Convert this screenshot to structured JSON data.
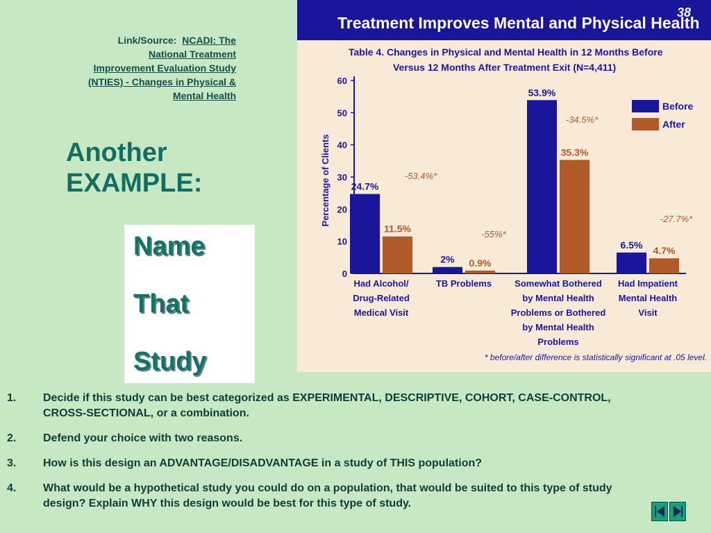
{
  "source": {
    "prefix": "Link/Source:",
    "link_lines": [
      "NCADI: The",
      "National Treatment",
      "Improvement Evaluation Study",
      "(NTIES) - Changes in Physical &",
      "Mental Health"
    ]
  },
  "heading": {
    "line1": "Another",
    "line2": "EXAMPLE:"
  },
  "name_that_study": [
    "Name",
    "That",
    "Study"
  ],
  "slide_number": "38",
  "chart_data": {
    "type": "bar",
    "title": "Treatment Improves Mental and Physical Health",
    "subtitle_line1": "Table 4. Changes in Physical and Mental Health in 12 Months Before",
    "subtitle_line2": "Versus 12 Months After Treatment Exit (N=4,411)",
    "ylabel": "Percentage of Clients",
    "ylim": [
      0,
      60
    ],
    "yticks": [
      "0",
      "10",
      "20",
      "30",
      "40",
      "50",
      "60"
    ],
    "categories": [
      [
        "Had Alcohol/",
        "Drug-Related",
        "Medical Visit"
      ],
      [
        "TB Problems"
      ],
      [
        "Somewhat Bothered",
        "by Mental Health",
        "Problems or Bothered",
        "by Mental Health",
        "Problems"
      ],
      [
        "Had Impatient",
        "Mental Health",
        "Visit"
      ]
    ],
    "series": [
      {
        "name": "Before",
        "color": "#1a169c",
        "values": [
          24.7,
          2,
          53.9,
          6.5
        ],
        "labels": [
          "24.7%",
          "2%",
          "53.9%",
          "6.5%"
        ]
      },
      {
        "name": "After",
        "color": "#b05a2a",
        "values": [
          11.5,
          0.9,
          35.3,
          4.7
        ],
        "labels": [
          "11.5%",
          "0.9%",
          "35.3%",
          "4.7%"
        ]
      }
    ],
    "changes": [
      "-53.4%*",
      "-55%*",
      "-34.5%*",
      "-27.7%*"
    ],
    "footnote": "* before/after difference is statistically significant at .05 level.",
    "legend_position": "top-right",
    "colors": {
      "header": "#1a169c",
      "panel": "#f9ead8",
      "axis": "#1a169c",
      "change": "#b05a2a"
    }
  },
  "questions": [
    {
      "num": "1.",
      "text": "Decide if this study can be best categorized as EXPERIMENTAL, DESCRIPTIVE, COHORT, CASE-CONTROL,  CROSS-SECTIONAL, or a combination."
    },
    {
      "num": "2.",
      "text": "Defend your choice with two reasons."
    },
    {
      "num": "3.",
      "text": "How is this design an ADVANTAGE/DISADVANTAGE in a study of THIS population?"
    },
    {
      "num": "4.",
      "text": "What would be a hypothetical study you could do on a population, that would be suited to this type of study design?  Explain WHY this design would be best for this type of study."
    }
  ],
  "nav_buttons": [
    "first-slide-button",
    "previous-slide-button",
    "next-slide-button"
  ]
}
